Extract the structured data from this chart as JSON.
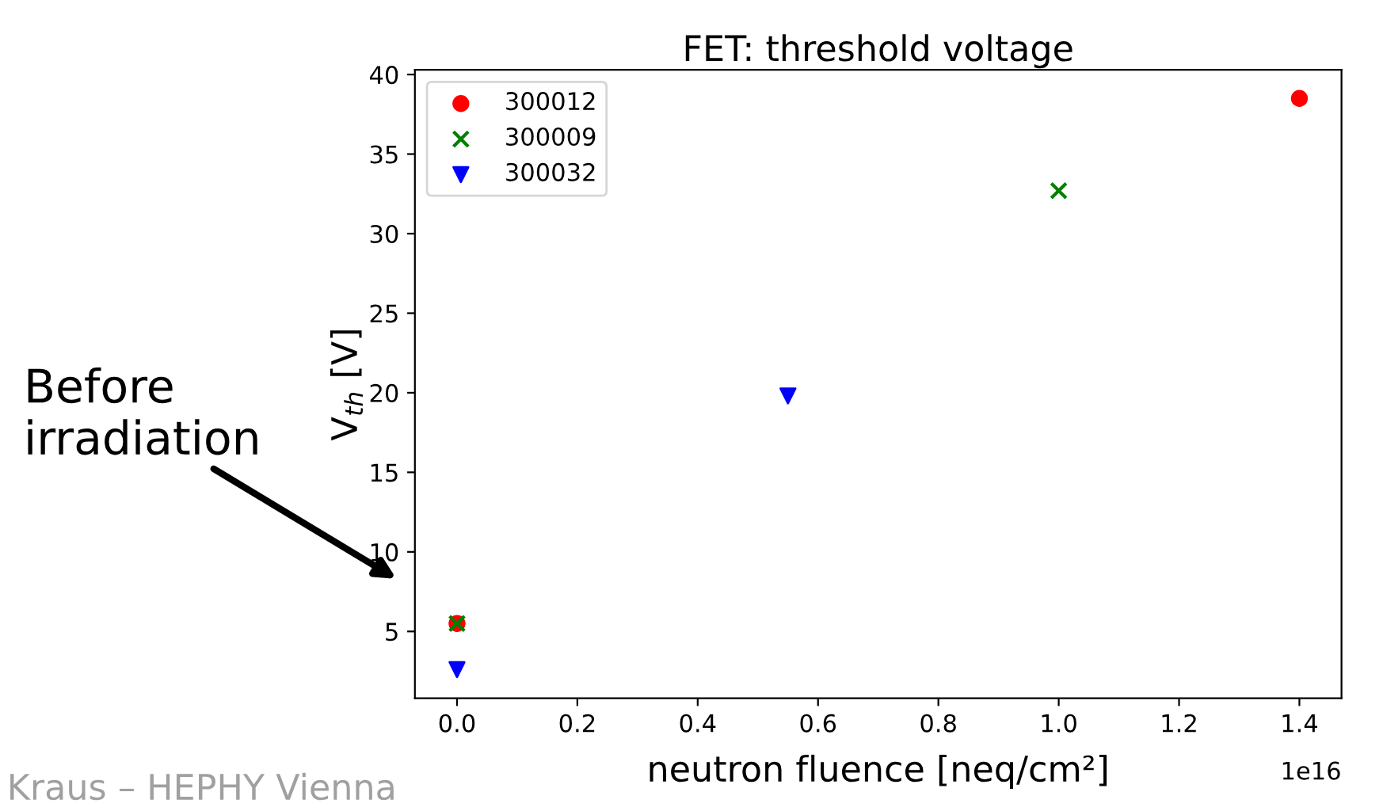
{
  "chart_data": {
    "type": "scatter",
    "title": "FET: threshold voltage",
    "xlabel": "neutron fluence [neq/cm²]",
    "ylabel": "V$_{th}$ [V]",
    "series": [
      {
        "name": "300012",
        "color": "#ff0000",
        "marker": "circle",
        "x": [
          0.0,
          1.4
        ],
        "values": [
          5.5,
          38.5
        ]
      },
      {
        "name": "300009",
        "color": "#008000",
        "marker": "cross",
        "x": [
          0.0,
          1.0
        ],
        "values": [
          5.5,
          32.7
        ]
      },
      {
        "name": "300032",
        "color": "#0000ff",
        "marker": "triangle",
        "x": [
          0.0,
          0.55
        ],
        "values": [
          2.6,
          19.8
        ]
      }
    ],
    "xlim": [
      -0.07,
      1.47
    ],
    "xticks": [
      {
        "value": 0,
        "label": "0.0"
      },
      0.2,
      0.4,
      0.6,
      0.8,
      {
        "value": 1,
        "label": "1.0"
      },
      1.2,
      1.4
    ],
    "ylim": [
      0.8,
      40.3
    ],
    "yticks": [
      5,
      10,
      15,
      20,
      25,
      30,
      35,
      40
    ],
    "grid": false,
    "legend": "top left",
    "annotations": [
      "Before\nirradiation",
      "1e16",
      "Kraus – HEPHY Vienna"
    ]
  }
}
